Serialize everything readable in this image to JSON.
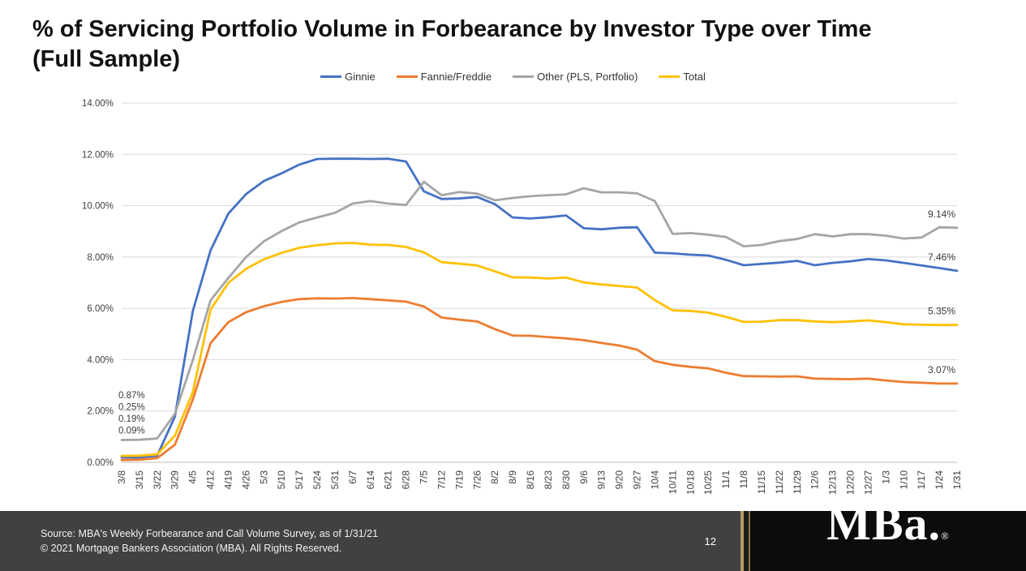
{
  "title": {
    "line1": "% of Servicing Portfolio Volume in Forbearance by Investor Type over Time",
    "line2": "(Full Sample)"
  },
  "chart_data": {
    "type": "line",
    "title": "% of Servicing Portfolio Volume in Forbearance by Investor Type over Time (Full Sample)",
    "xlabel": "",
    "ylabel": "",
    "ylim": [
      0,
      14
    ],
    "ytick_step": 2,
    "ytick_labels": [
      "0.00%",
      "2.00%",
      "4.00%",
      "6.00%",
      "8.00%",
      "10.00%",
      "12.00%",
      "14.00%"
    ],
    "grid": "horizontal",
    "legend_position": "top",
    "x": [
      "3/8",
      "3/15",
      "3/22",
      "3/29",
      "4/5",
      "4/12",
      "4/19",
      "4/26",
      "5/3",
      "5/10",
      "5/17",
      "5/24",
      "5/31",
      "6/7",
      "6/14",
      "6/21",
      "6/28",
      "7/5",
      "7/12",
      "7/19",
      "7/26",
      "8/2",
      "8/9",
      "8/16",
      "8/23",
      "8/30",
      "9/6",
      "9/13",
      "9/20",
      "9/27",
      "10/4",
      "10/11",
      "10/18",
      "10/25",
      "11/1",
      "11/8",
      "11/15",
      "11/22",
      "11/29",
      "12/6",
      "12/13",
      "12/20",
      "12/27",
      "1/3",
      "1/10",
      "1/17",
      "1/24",
      "1/31"
    ],
    "series": [
      {
        "name": "Ginnie",
        "color": "#4472C4",
        "end_label": "7.46%",
        "values": [
          0.19,
          0.19,
          0.26,
          1.79,
          5.89,
          8.26,
          9.69,
          10.45,
          10.96,
          11.26,
          11.6,
          11.82,
          11.83,
          11.83,
          11.82,
          11.83,
          11.72,
          10.56,
          10.26,
          10.28,
          10.34,
          10.06,
          9.54,
          9.5,
          9.55,
          9.62,
          9.12,
          9.08,
          9.14,
          9.16,
          8.17,
          8.14,
          8.09,
          8.06,
          7.89,
          7.68,
          7.73,
          7.78,
          7.85,
          7.68,
          7.77,
          7.83,
          7.92,
          7.87,
          7.77,
          7.67,
          7.57,
          7.46
        ]
      },
      {
        "name": "Fannie/Freddie",
        "color": "#ED7D31",
        "end_label": "3.07%",
        "values": [
          0.09,
          0.1,
          0.16,
          0.69,
          2.44,
          4.64,
          5.46,
          5.85,
          6.08,
          6.25,
          6.36,
          6.39,
          6.38,
          6.4,
          6.36,
          6.31,
          6.26,
          6.07,
          5.64,
          5.56,
          5.49,
          5.19,
          4.94,
          4.93,
          4.88,
          4.83,
          4.76,
          4.65,
          4.55,
          4.39,
          3.94,
          3.8,
          3.72,
          3.66,
          3.49,
          3.36,
          3.35,
          3.34,
          3.35,
          3.26,
          3.25,
          3.24,
          3.26,
          3.19,
          3.13,
          3.1,
          3.07,
          3.07
        ]
      },
      {
        "name": "Other (PLS, Portfolio)",
        "color": "#A5A5A5",
        "end_label": "9.14%",
        "values": [
          0.87,
          0.88,
          0.93,
          1.89,
          3.98,
          6.31,
          7.18,
          8.0,
          8.61,
          9.01,
          9.35,
          9.54,
          9.72,
          10.08,
          10.18,
          10.08,
          10.03,
          10.93,
          10.41,
          10.53,
          10.47,
          10.21,
          10.3,
          10.37,
          10.41,
          10.44,
          10.68,
          10.52,
          10.52,
          10.48,
          10.18,
          8.9,
          8.93,
          8.87,
          8.78,
          8.42,
          8.47,
          8.62,
          8.7,
          8.89,
          8.8,
          8.89,
          8.89,
          8.83,
          8.72,
          8.76,
          9.16,
          9.14
        ]
      },
      {
        "name": "Total",
        "color": "#FFC000",
        "end_label": "5.35%",
        "values": [
          0.25,
          0.26,
          0.31,
          1.04,
          2.73,
          5.95,
          6.99,
          7.54,
          7.91,
          8.16,
          8.36,
          8.46,
          8.53,
          8.55,
          8.48,
          8.47,
          8.39,
          8.18,
          7.8,
          7.74,
          7.67,
          7.44,
          7.21,
          7.2,
          7.16,
          7.2,
          7.01,
          6.93,
          6.87,
          6.81,
          6.32,
          5.92,
          5.9,
          5.83,
          5.67,
          5.47,
          5.48,
          5.54,
          5.54,
          5.49,
          5.46,
          5.49,
          5.53,
          5.46,
          5.38,
          5.36,
          5.35,
          5.35
        ]
      }
    ],
    "start_labels": [
      {
        "text": "0.87%",
        "y_pct": 2.5
      },
      {
        "text": "0.25%",
        "y_pct": 2.04
      },
      {
        "text": "0.19%",
        "y_pct": 1.58
      },
      {
        "text": "0.09%",
        "y_pct": 1.12
      }
    ]
  },
  "footer": {
    "source_line1": "Source: MBA's Weekly Forbearance and Call Volume Survey, as of 1/31/21",
    "source_line2": "© 2021 Mortgage Bankers Association (MBA). All Rights Reserved.",
    "page_number": "12",
    "logo_text": "MBa.",
    "logo_registered": "®",
    "accent_color": "#B3995D"
  }
}
